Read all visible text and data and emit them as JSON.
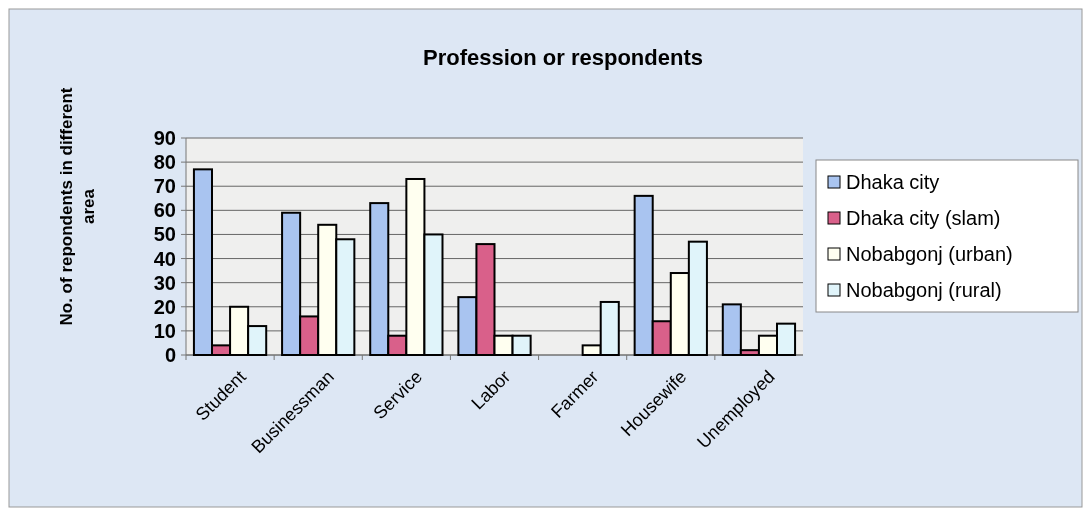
{
  "chart_data": {
    "type": "bar",
    "title": "Profession or respondents",
    "ylabel": "No. of repondents in different area",
    "categories": [
      "Student",
      "Businessman",
      "Service",
      "Labor",
      "Farmer",
      "Housewife",
      "Unemployed"
    ],
    "series": [
      {
        "name": "Dhaka city",
        "color": "#a9c4f0",
        "values": [
          77,
          59,
          63,
          24,
          0,
          66,
          21
        ]
      },
      {
        "name": "Dhaka city (slam)",
        "color": "#d9608a",
        "values": [
          4,
          16,
          8,
          46,
          0,
          14,
          2
        ]
      },
      {
        "name": "Nobabgonj (urban)",
        "color": "#fffff0",
        "values": [
          20,
          54,
          73,
          8,
          4,
          34,
          8
        ]
      },
      {
        "name": "Nobabgonj (rural)",
        "color": "#e0f4fa",
        "values": [
          12,
          48,
          50,
          8,
          22,
          47,
          13
        ]
      }
    ],
    "ylim": [
      0,
      90
    ],
    "yticks": [
      0,
      10,
      20,
      30,
      40,
      50,
      60,
      70,
      80,
      90
    ],
    "grid": "y",
    "legend": "right"
  }
}
